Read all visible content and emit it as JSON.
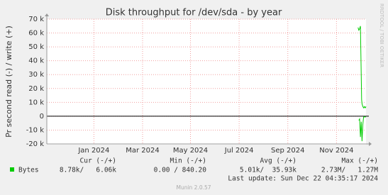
{
  "chart_data": {
    "type": "line",
    "title": "Disk throughput for /dev/sda - by year",
    "y_label": "Pr second read (-) / write (+)",
    "side_text": "RRDTOOL / TOBI OETIKER",
    "xlim": [
      0,
      400
    ],
    "xticks": [
      {
        "value": 59,
        "label": "Jan 2024"
      },
      {
        "value": 120,
        "label": "Mar 2024"
      },
      {
        "value": 180,
        "label": "May 2024"
      },
      {
        "value": 241,
        "label": "Jul 2024"
      },
      {
        "value": 302,
        "label": "Sep 2024"
      },
      {
        "value": 363,
        "label": "Nov 2024"
      }
    ],
    "ylim": [
      -20000,
      70000
    ],
    "yticks": [
      {
        "value": -20000,
        "label": "-20 k"
      },
      {
        "value": -10000,
        "label": "-10 k"
      },
      0,
      {
        "value": 10000,
        "label": "10 k"
      },
      {
        "value": 20000,
        "label": "20 k"
      },
      {
        "value": 30000,
        "label": "30 k"
      },
      {
        "value": 40000,
        "label": "40 k"
      },
      {
        "value": 50000,
        "label": "50 k"
      },
      {
        "value": 60000,
        "label": "60 k"
      },
      {
        "value": 70000,
        "label": "70 k"
      }
    ],
    "grid": true,
    "x": [
      390,
      391,
      392,
      393,
      394,
      394.5,
      395,
      396,
      397,
      398,
      399,
      400
    ],
    "series": [
      {
        "name": "Bytes",
        "color": "#00cc00",
        "values": [
          64000,
          62000,
          63000,
          65000,
          30000,
          12000,
          9000,
          7000,
          6000,
          7000,
          6000,
          7000
        ],
        "read_values": [
          null,
          -3000,
          -2000,
          -15000,
          -4000,
          -10000,
          -18000,
          -6000,
          -500,
          -500,
          -500,
          -500
        ]
      }
    ],
    "legend": {
      "headers": [
        "Cur (-/+)",
        "Min (-/+)",
        "Avg (-/+)",
        "Max (-/+)"
      ],
      "row": [
        "8.78k/   6.06k",
        "0.00 / 840.20",
        "5.01k/  35.93k",
        "2.73M/   1.27M"
      ]
    },
    "last_update": "Last update: Sun Dec 22 04:35:17 2024",
    "footer": "Munin 2.0.57"
  }
}
